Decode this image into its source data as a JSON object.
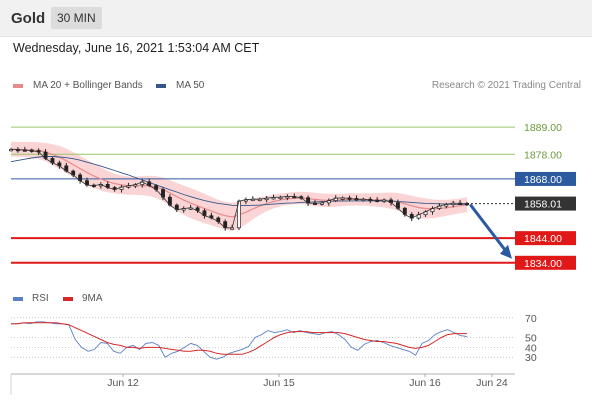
{
  "header": {
    "instrument": "Gold",
    "timeframe": "30 MIN"
  },
  "datetime": "Wednesday, June 16, 2021 1:53:04 AM CET",
  "legend": {
    "items": [
      {
        "label": "MA 20 + Bollinger Bands",
        "color": "#e88a8a"
      },
      {
        "label": "MA 50",
        "color": "#34568b"
      }
    ],
    "credit": "Research © 2021 Trading Central"
  },
  "rsi_legend": {
    "items": [
      {
        "label": "RSI",
        "color": "#5b7fc4"
      },
      {
        "label": "9MA",
        "color": "#d62828"
      }
    ]
  },
  "colors": {
    "price_line": "#333333",
    "candle_up": "#555555",
    "candle_down": "#222222",
    "bollinger_fill": "#fbd5d5",
    "ma20": "#e88a8a",
    "ma50": "#34568b",
    "resistance": "#9ac76b",
    "pivot": "#2c5aa0",
    "support": "#e01818",
    "current": "#333333",
    "arrow": "#2c5aa0"
  },
  "chart_data": {
    "type": "line",
    "ylim": [
      1825,
      1900
    ],
    "x_ticks": [
      "Jun 12",
      "Jun 15",
      "Jun 16",
      "Jun 24"
    ],
    "price": {
      "name": "Gold",
      "values": [
        1880.0,
        1879.8,
        1879.7,
        1879.5,
        1878.9,
        1876.3,
        1874.5,
        1873.3,
        1871.2,
        1869.6,
        1867.3,
        1865.5,
        1865.3,
        1865.8,
        1864.5,
        1863.7,
        1864.7,
        1865.2,
        1865.7,
        1866.8,
        1865.3,
        1863.7,
        1860.6,
        1857.4,
        1855.5,
        1856.0,
        1856.3,
        1855.1,
        1853.1,
        1852.2,
        1850.7,
        1848.2,
        1848.2,
        1859.0,
        1859.6,
        1859.8,
        1859.8,
        1860.2,
        1860.5,
        1860.6,
        1860.9,
        1860.8,
        1860.4,
        1858.2,
        1858.1,
        1858.3,
        1859.2,
        1860.2,
        1860.3,
        1860.1,
        1859.7,
        1859.8,
        1859.4,
        1859.1,
        1859.5,
        1858.4,
        1856.1,
        1853.6,
        1852.1,
        1853.5,
        1854.7,
        1856.0,
        1857.0,
        1857.7,
        1858.2,
        1858.1,
        1858.0
      ]
    },
    "ma20": {
      "name": "MA 20",
      "values": [
        1880.0,
        1880.0,
        1879.9,
        1879.8,
        1879.5,
        1878.9,
        1877.9,
        1876.8,
        1875.4,
        1873.8,
        1872.2,
        1870.6,
        1869.2,
        1868.0,
        1866.9,
        1866.1,
        1865.6,
        1865.3,
        1865.2,
        1865.3,
        1865.2,
        1864.7,
        1863.8,
        1862.3,
        1860.8,
        1859.4,
        1858.2,
        1857.1,
        1856.0,
        1855.0,
        1853.9,
        1853.1,
        1852.6,
        1853.4,
        1854.5,
        1855.8,
        1857.0,
        1858.0,
        1858.8,
        1859.5,
        1859.9,
        1860.2,
        1860.3,
        1860.0,
        1859.7,
        1859.4,
        1859.3,
        1859.4,
        1859.5,
        1859.7,
        1859.7,
        1859.7,
        1859.6,
        1859.5,
        1859.4,
        1859.2,
        1858.7,
        1857.9,
        1857.1,
        1856.4,
        1856.0,
        1855.9,
        1856.0,
        1856.3,
        1856.7,
        1857.1,
        1857.6
      ]
    },
    "ma50": {
      "name": "MA 50",
      "values": [
        1875.0,
        1875.5,
        1876.0,
        1876.5,
        1876.9,
        1877.1,
        1877.1,
        1876.9,
        1876.6,
        1876.2,
        1875.6,
        1874.8,
        1874.0,
        1873.2,
        1872.3,
        1871.4,
        1870.5,
        1869.6,
        1868.6,
        1867.6,
        1866.6,
        1865.6,
        1864.6,
        1863.6,
        1862.7,
        1861.7,
        1860.8,
        1860.0,
        1859.2,
        1858.6,
        1858.1,
        1857.7,
        1857.3,
        1857.2,
        1857.2,
        1857.3,
        1857.4,
        1857.6,
        1857.8,
        1858.0,
        1858.2,
        1858.3,
        1858.5,
        1858.6,
        1858.7,
        1858.8,
        1858.9,
        1859.0,
        1859.0,
        1859.1,
        1859.1,
        1859.1,
        1859.1,
        1859.1,
        1859.0,
        1859.0,
        1858.9,
        1858.7,
        1858.5,
        1858.3,
        1858.1,
        1858.0,
        1857.9,
        1857.8,
        1857.7,
        1857.6,
        1857.5
      ]
    },
    "bollinger_width": [
      3.0,
      3.0,
      3.1,
      3.2,
      3.4,
      3.8,
      4.2,
      4.6,
      4.9,
      5.1,
      5.2,
      5.2,
      5.0,
      4.7,
      4.3,
      4.0,
      3.8,
      3.7,
      3.7,
      3.9,
      4.1,
      4.4,
      4.8,
      5.2,
      5.6,
      5.9,
      6.1,
      6.1,
      6.0,
      5.8,
      5.6,
      5.6,
      5.7,
      5.5,
      4.9,
      4.2,
      3.6,
      3.1,
      2.8,
      2.6,
      2.5,
      2.5,
      2.5,
      2.6,
      2.7,
      2.7,
      2.7,
      2.6,
      2.5,
      2.5,
      2.5,
      2.5,
      2.6,
      2.8,
      3.0,
      3.3,
      3.6,
      3.9,
      4.1,
      4.2,
      4.1,
      3.8,
      3.5,
      3.3,
      3.1,
      3.0,
      3.0
    ],
    "levels": [
      {
        "label": "1889.00",
        "value": 1889.0,
        "kind": "resistance"
      },
      {
        "label": "1878.00",
        "value": 1878.0,
        "kind": "resistance"
      },
      {
        "label": "1868.00",
        "value": 1868.0,
        "kind": "pivot"
      },
      {
        "label": "1858.01",
        "value": 1858.01,
        "kind": "current"
      },
      {
        "label": "1844.00",
        "value": 1844.0,
        "kind": "support"
      },
      {
        "label": "1834.00",
        "value": 1834.0,
        "kind": "support"
      }
    ],
    "arrow": {
      "from": 1858.0,
      "to": 1834.0
    },
    "rsi": {
      "ylim": [
        15,
        80
      ],
      "ticks": [
        70,
        50,
        40,
        30
      ],
      "values": [
        64,
        64,
        65,
        64,
        66,
        66,
        65,
        64,
        64,
        63,
        48,
        40,
        36,
        38,
        45,
        44,
        36,
        34,
        40,
        42,
        38,
        44,
        45,
        42,
        30,
        34,
        36,
        40,
        44,
        42,
        36,
        30,
        28,
        30,
        34,
        36,
        38,
        41,
        50,
        53,
        57,
        55,
        56,
        58,
        55,
        57,
        55,
        54,
        53,
        55,
        56,
        53,
        48,
        40,
        37,
        43,
        46,
        47,
        45,
        42,
        40,
        38,
        36,
        32,
        44,
        47,
        53,
        56,
        58,
        55,
        52,
        51
      ],
      "ma9": [
        64,
        64,
        65,
        65,
        65,
        65,
        65,
        65,
        64,
        63,
        60,
        57,
        54,
        51,
        48,
        45,
        43,
        42,
        40,
        40,
        39,
        40,
        40,
        40,
        39,
        38,
        37,
        36,
        36,
        37,
        37,
        36,
        34,
        33,
        33,
        33,
        33,
        35,
        38,
        42,
        46,
        50,
        53,
        55,
        56,
        56,
        56,
        55,
        55,
        55,
        55,
        55,
        54,
        52,
        50,
        48,
        47,
        46,
        46,
        45,
        44,
        42,
        40,
        39,
        40,
        42,
        46,
        50,
        53,
        54,
        54,
        54
      ]
    }
  }
}
